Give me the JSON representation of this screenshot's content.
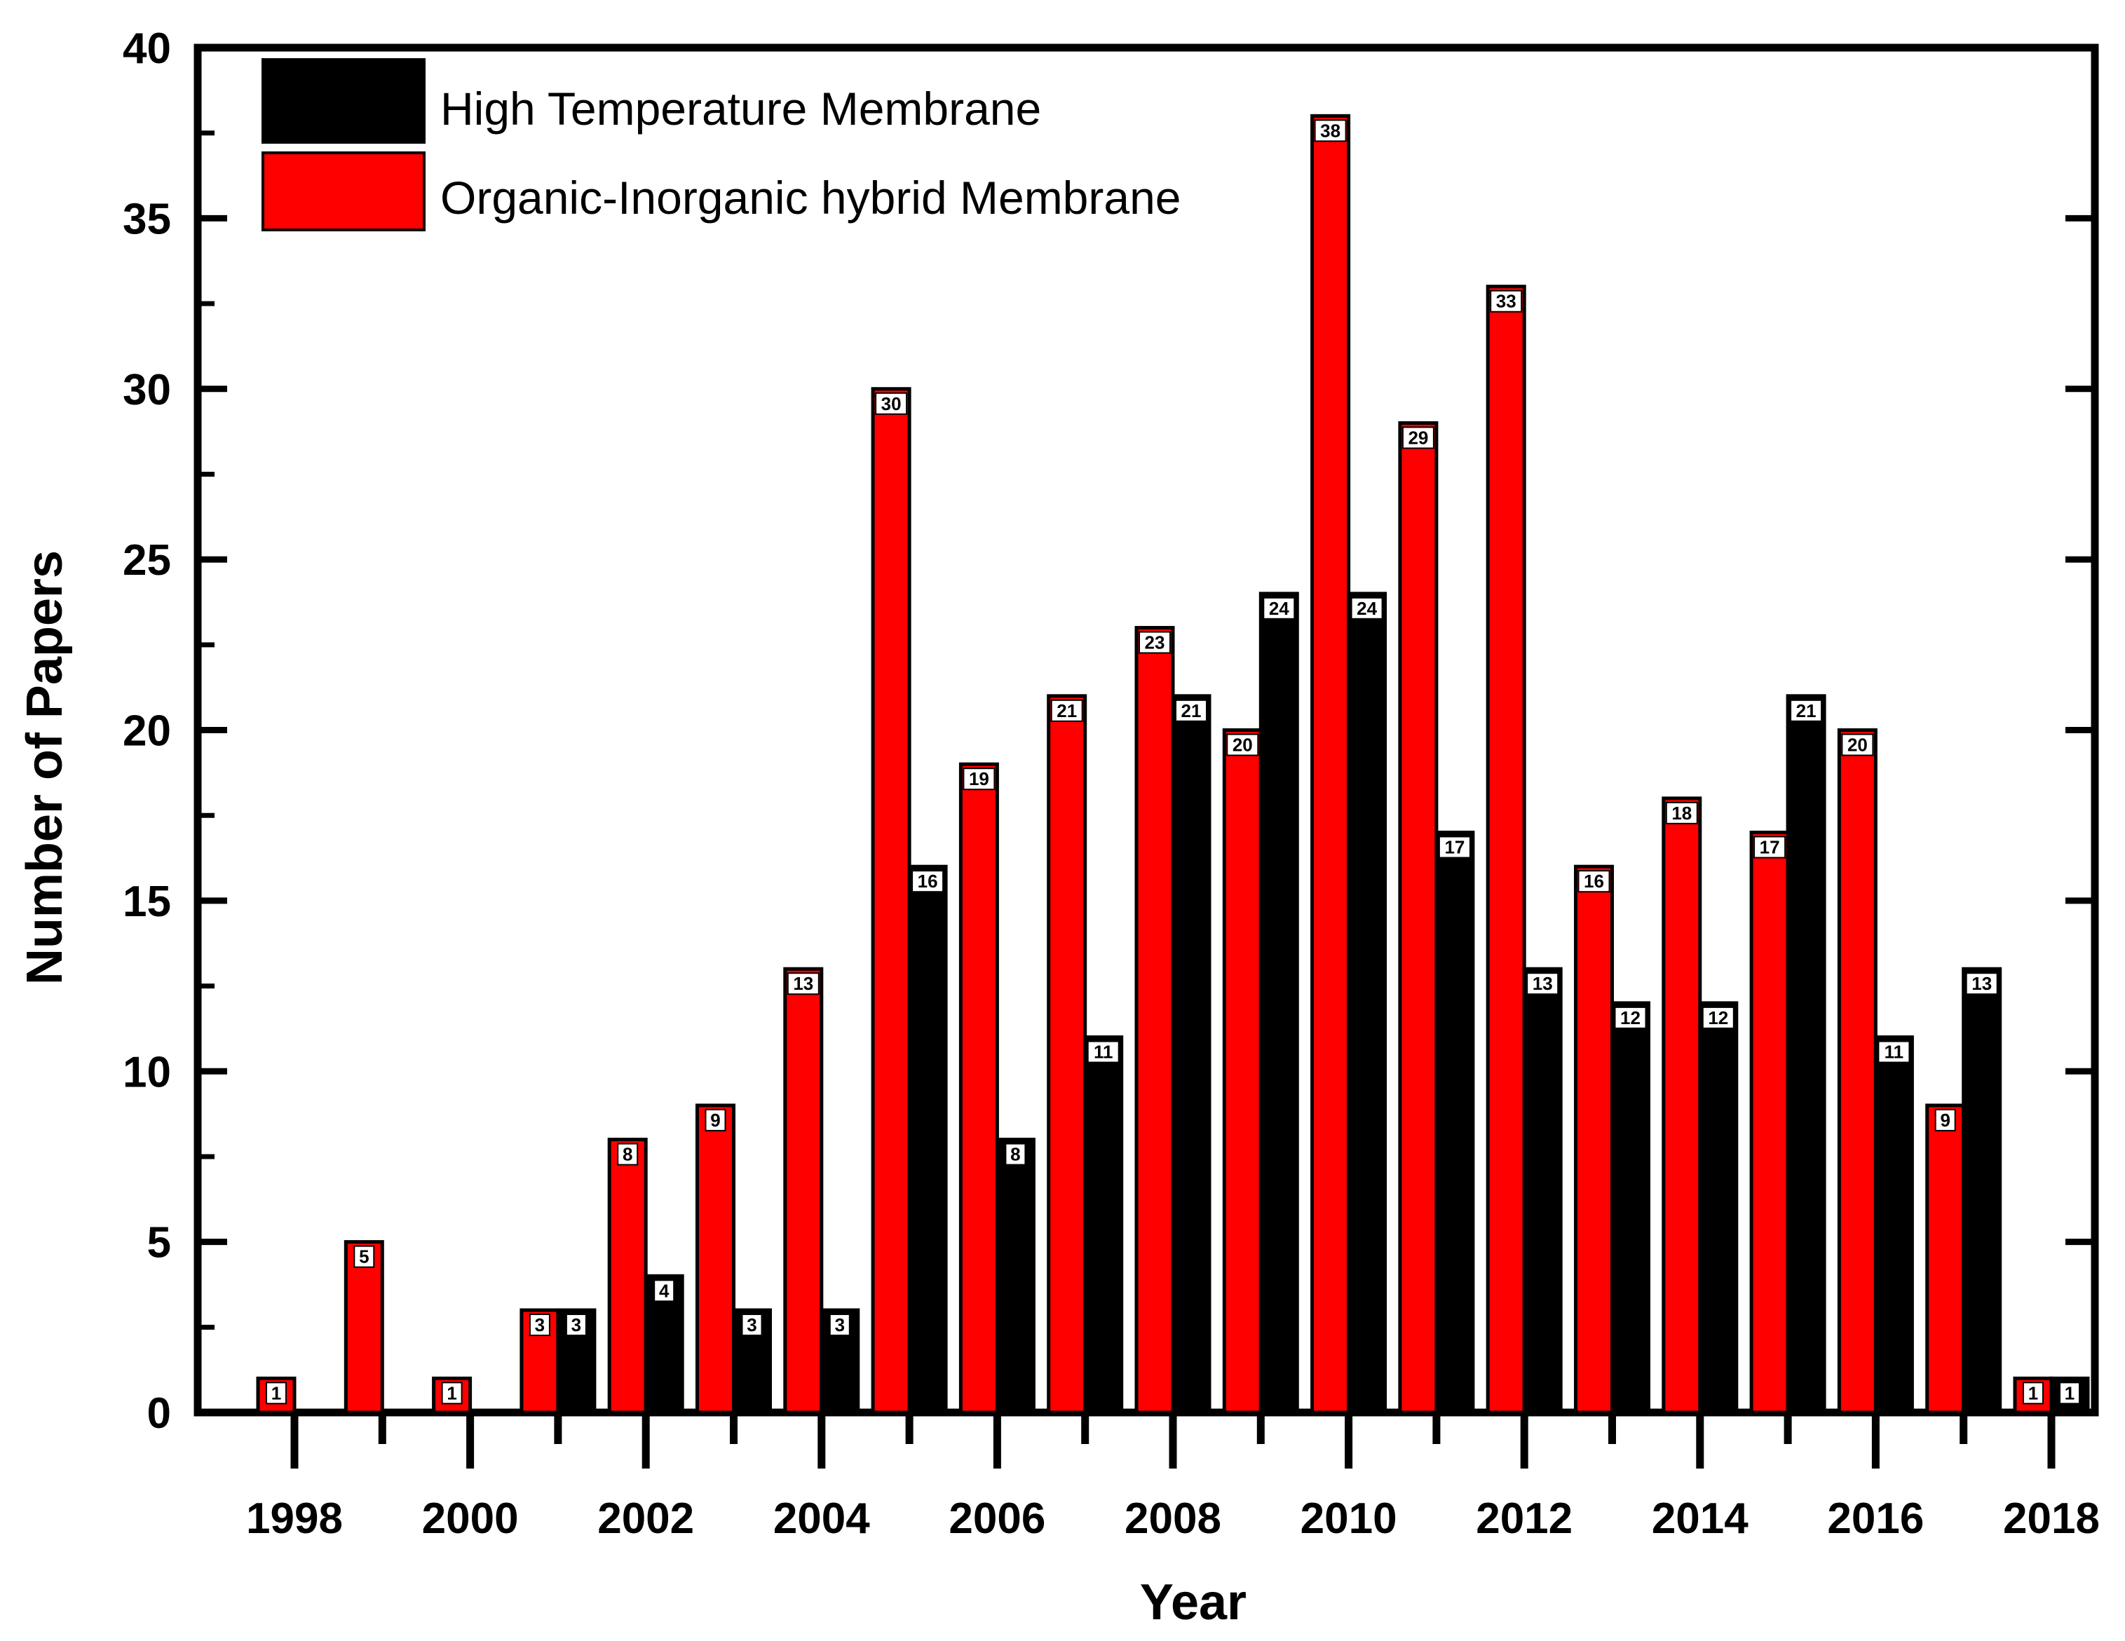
{
  "chart_data": {
    "type": "bar",
    "title": "",
    "xlabel": "Year",
    "ylabel": "Number of Papers",
    "ylim": [
      0,
      40
    ],
    "yticks": [
      "0",
      "5",
      "10",
      "15",
      "20",
      "25",
      "30",
      "35",
      "40"
    ],
    "xticks": [
      "1998",
      "2000",
      "2002",
      "2004",
      "2006",
      "2008",
      "2010",
      "2012",
      "2014",
      "2016",
      "2018"
    ],
    "categories": [
      "1998",
      "1999",
      "2000",
      "2001",
      "2002",
      "2003",
      "2004",
      "2005",
      "2006",
      "2007",
      "2008",
      "2009",
      "2010",
      "2011",
      "2012",
      "2013",
      "2014",
      "2015",
      "2016",
      "2017",
      "2018"
    ],
    "legend_position": "top-left",
    "series": [
      {
        "name": "Organic-Inorganic hybrid Membrane",
        "color": "#ff0000",
        "values": [
          1,
          5,
          1,
          3,
          8,
          9,
          13,
          30,
          19,
          21,
          23,
          20,
          38,
          29,
          33,
          16,
          18,
          17,
          20,
          9,
          1
        ]
      },
      {
        "name": "High Temperature Membrane",
        "color": "#000000",
        "values": [
          null,
          null,
          null,
          3,
          4,
          3,
          3,
          16,
          8,
          11,
          21,
          24,
          24,
          17,
          13,
          12,
          12,
          21,
          11,
          13,
          1
        ]
      }
    ],
    "legend": [
      {
        "label": "High Temperature Membrane",
        "color": "#000000"
      },
      {
        "label": "Organic-Inorganic hybrid Membrane",
        "color": "#ff0000"
      }
    ]
  }
}
